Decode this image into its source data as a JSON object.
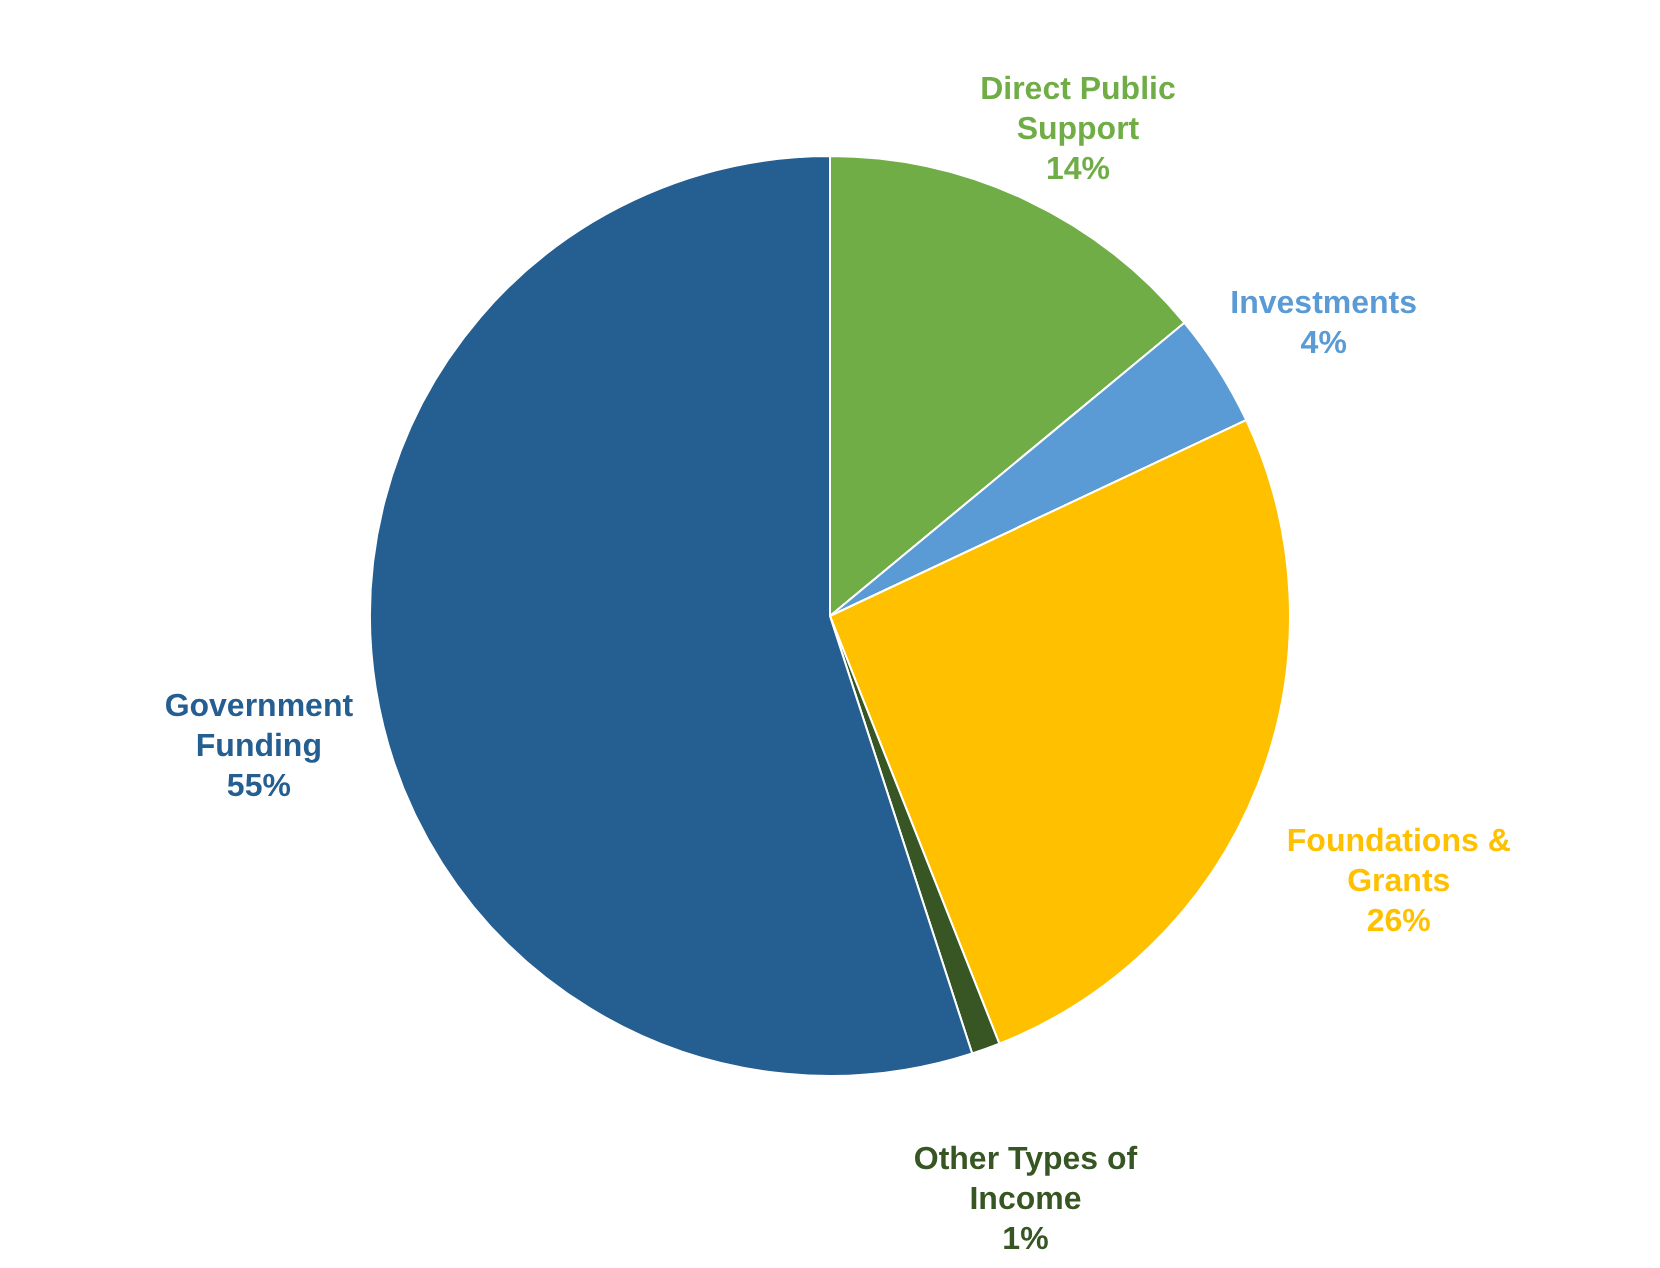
{
  "chart_data": {
    "type": "pie",
    "categories": [
      "Direct Public Support",
      "Investments",
      "Foundations & Grants",
      "Other Types of Income",
      "Government Funding"
    ],
    "values": [
      14,
      4,
      26,
      1,
      55
    ],
    "value_labels": [
      "14%",
      "4%",
      "26%",
      "1%",
      "55%"
    ],
    "colors": [
      "#70ad47",
      "#5b9bd5",
      "#ffc000",
      "#375623",
      "#255e91"
    ]
  }
}
